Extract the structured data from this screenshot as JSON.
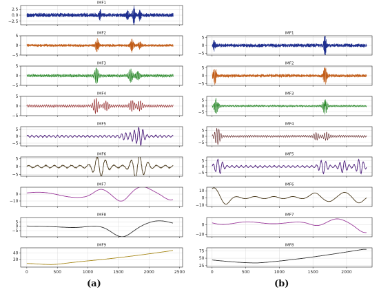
{
  "chart_data": [
    {
      "type": "line",
      "panel": "a",
      "panel_label": "(a)",
      "shared_xlim": [
        -100,
        2550
      ],
      "xticks": [
        0,
        500,
        1000,
        1500,
        2000,
        2500
      ],
      "n_points": 2400,
      "subplots": [
        {
          "title": "IMF1",
          "color": "#1f2f8f",
          "ylim": [
            -4,
            4
          ],
          "yticks": [
            2.5,
            0.0,
            -2.5
          ],
          "ytick_labels": [
            "2.5",
            "0.0",
            "−2.5"
          ],
          "amplitude": 0.9,
          "bursts": [
            [
              1200,
              1.8
            ],
            [
              1650,
              1.7
            ],
            [
              1750,
              4.0
            ],
            [
              1850,
              1.8
            ]
          ]
        },
        {
          "title": "IMF2",
          "color": "#c05a14",
          "ylim": [
            -5,
            5
          ],
          "yticks": [
            5,
            0,
            -5
          ],
          "ytick_labels": [
            "5",
            "0",
            "−5"
          ],
          "amplitude": 0.7,
          "bursts": [
            [
              1150,
              3.5
            ],
            [
              1720,
              3.2
            ],
            [
              1850,
              1.5
            ]
          ]
        },
        {
          "title": "IMF3",
          "color": "#2d8a2d",
          "ylim": [
            -5,
            5
          ],
          "yticks": [
            5,
            0,
            -5
          ],
          "ytick_labels": [
            "5",
            "0",
            "−5"
          ],
          "amplitude": 0.8,
          "bursts": [
            [
              1140,
              3.8
            ],
            [
              1700,
              3.2
            ],
            [
              1820,
              1.8
            ]
          ]
        },
        {
          "title": "IMF4",
          "color": "#8b1a1a",
          "ylim": [
            -5,
            5
          ],
          "yticks": [
            5,
            0,
            -5
          ],
          "ytick_labels": [
            "5",
            "0",
            "−5"
          ],
          "amplitude": 0.7,
          "bursts": [
            [
              1130,
              3.6
            ],
            [
              1300,
              2.0
            ],
            [
              1720,
              2.5
            ],
            [
              1850,
              2.2
            ]
          ]
        },
        {
          "title": "IMF5",
          "color": "#4b1c7a",
          "ylim": [
            -7,
            7
          ],
          "yticks": [
            5,
            0,
            -5
          ],
          "ytick_labels": [
            "5",
            "0",
            "−5"
          ],
          "amplitude": 0.9,
          "bursts": [
            [
              1600,
              2.0
            ],
            [
              1750,
              3.0
            ],
            [
              1860,
              5.8
            ]
          ]
        },
        {
          "title": "IMF6",
          "color": "#4a3a1c",
          "ylim": [
            -6,
            6
          ],
          "yticks": [
            5,
            0,
            -5
          ],
          "ytick_labels": [
            "5",
            "0",
            "−5"
          ],
          "amplitude": 1.0,
          "bursts": [
            [
              1150,
              4.0
            ],
            [
              1250,
              3.0
            ],
            [
              1780,
              5.0
            ],
            [
              1900,
              3.5
            ]
          ]
        },
        {
          "title": "IMF7",
          "color": "#9a3a9a",
          "ylim": [
            -18,
            10
          ],
          "yticks": [
            0,
            -10
          ],
          "ytick_labels": [
            "0",
            "−10"
          ],
          "shape": "slow7a"
        },
        {
          "title": "IMF8",
          "color": "#333333",
          "ylim": [
            -12,
            10
          ],
          "yticks": [
            5,
            0,
            -5
          ],
          "ytick_labels": [
            "5",
            "0",
            "−5"
          ],
          "shape": "slow8a"
        },
        {
          "title": "IMF9",
          "color": "#a88a1c",
          "ylim": [
            18,
            48
          ],
          "yticks": [
            40,
            30
          ],
          "ytick_labels": [
            "40",
            "30"
          ],
          "shape": "trend9a"
        }
      ]
    },
    {
      "type": "line",
      "panel": "b",
      "panel_label": "(b)",
      "shared_xlim": [
        -80,
        2380
      ],
      "xticks": [
        0,
        500,
        1000,
        1500,
        2000
      ],
      "n_points": 2300,
      "subplots": [
        {
          "title": "IMF1",
          "color": "#1f2f8f",
          "ylim": [
            -6,
            6
          ],
          "yticks": [
            5,
            0,
            -5
          ],
          "ytick_labels": [
            "5",
            "0",
            "−5"
          ],
          "amplitude": 1.2,
          "bursts": [
            [
              30,
              3.0
            ],
            [
              1680,
              6.0
            ]
          ]
        },
        {
          "title": "IMF2",
          "color": "#c05a14",
          "ylim": [
            -6,
            6
          ],
          "yticks": [
            5,
            0,
            -5
          ],
          "ytick_labels": [
            "5",
            "0",
            "−5"
          ],
          "amplitude": 1.0,
          "bursts": [
            [
              40,
              4.5
            ],
            [
              1680,
              5.0
            ]
          ]
        },
        {
          "title": "IMF3",
          "color": "#2d8a2d",
          "ylim": [
            -8,
            8
          ],
          "yticks": [
            5,
            0,
            -5
          ],
          "ytick_labels": [
            "5",
            "0",
            "−5"
          ],
          "amplitude": 0.8,
          "bursts": [
            [
              60,
              6.0
            ],
            [
              1680,
              6.5
            ]
          ]
        },
        {
          "title": "IMF4",
          "color": "#5a1a1a",
          "ylim": [
            -8,
            8
          ],
          "yticks": [
            5,
            0,
            -5
          ],
          "ytick_labels": [
            "5",
            "0",
            "−5"
          ],
          "amplitude": 0.9,
          "bursts": [
            [
              80,
              6.5
            ],
            [
              1550,
              2.5
            ],
            [
              1700,
              3.0
            ]
          ]
        },
        {
          "title": "IMF5",
          "color": "#4b1c7a",
          "ylim": [
            -8,
            8
          ],
          "yticks": [
            5,
            0,
            -5
          ],
          "ytick_labels": [
            "5",
            "0",
            "−5"
          ],
          "amplitude": 1.0,
          "bursts": [
            [
              100,
              5.5
            ],
            [
              1650,
              5.0
            ],
            [
              1950,
              4.5
            ],
            [
              2200,
              5.5
            ]
          ]
        },
        {
          "title": "IMF6",
          "color": "#4a3a1c",
          "ylim": [
            -12,
            15
          ],
          "yticks": [
            10,
            0,
            -10
          ],
          "ytick_labels": [
            "10",
            "0",
            "−10"
          ],
          "shape": "slow6b"
        },
        {
          "title": "IMF7",
          "color": "#9a3a9a",
          "ylim": [
            -25,
            15
          ],
          "yticks": [
            0,
            -20
          ],
          "ytick_labels": [
            "0",
            "−20"
          ],
          "shape": "slow7b"
        },
        {
          "title": "IMF8",
          "color": "#333333",
          "ylim": [
            20,
            85
          ],
          "yticks": [
            75,
            50,
            25
          ],
          "ytick_labels": [
            "75",
            "50",
            "25"
          ],
          "shape": "trend8b"
        }
      ]
    }
  ]
}
